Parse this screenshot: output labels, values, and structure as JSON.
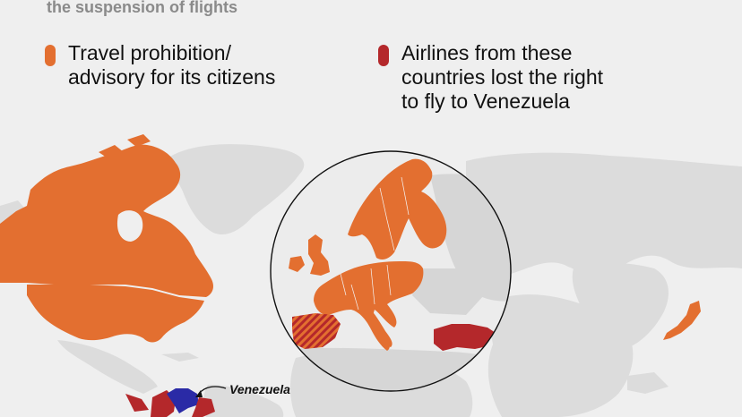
{
  "subtitle": "the suspension of flights",
  "legend": [
    {
      "label": "Travel prohibition/\nadvisory for its citizens",
      "color": "#e36f30"
    },
    {
      "label": "Airlines from these\ncountries lost the right\nto fly to Venezuela",
      "color": "#b4282b"
    }
  ],
  "annotation": "Venezuela",
  "colors": {
    "background": "#efefef",
    "land": "#dcdcdc",
    "travel_advisory": "#e36f30",
    "lost_flight_rights": "#b4282b",
    "venezuela": "#2a2aa6"
  },
  "icons": [
    "arrow-icon"
  ]
}
